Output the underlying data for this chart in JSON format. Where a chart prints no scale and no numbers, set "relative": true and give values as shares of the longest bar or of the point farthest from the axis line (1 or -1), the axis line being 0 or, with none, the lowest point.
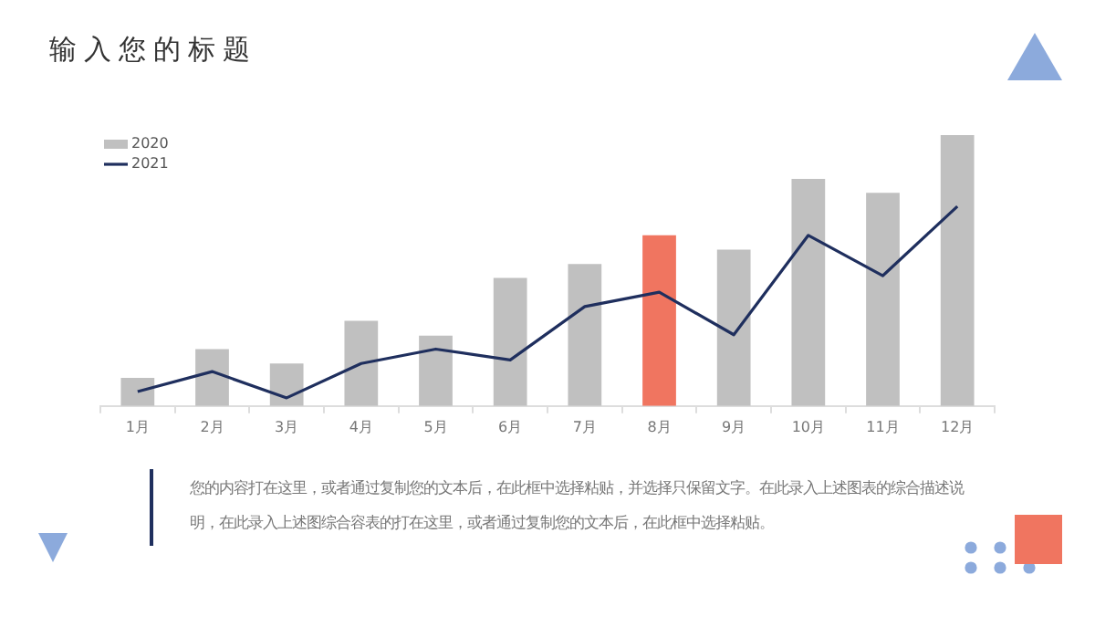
{
  "chart_data": {
    "type": "bar",
    "title": "输入您的标题",
    "categories": [
      "1月",
      "2月",
      "3月",
      "4月",
      "5月",
      "6月",
      "7月",
      "8月",
      "9月",
      "10月",
      "11月",
      "12月"
    ],
    "series": [
      {
        "name": "2020",
        "colors": [
          "#c0c0c0",
          "#c0c0c0",
          "#c0c0c0",
          "#c0c0c0",
          "#c0c0c0",
          "#c0c0c0",
          "#c0c0c0",
          "#f07560",
          "#c0c0c0",
          "#c0c0c0",
          "#c0c0c0",
          "#c0c0c0"
        ],
        "values": [
          0.104,
          0.21,
          0.157,
          0.314,
          0.26,
          0.473,
          0.524,
          0.63,
          0.577,
          0.838,
          0.787,
          1
        ]
      },
      {
        "name": "2021",
        "type": "line",
        "color": "#1f2f5e",
        "values": [
          0.053,
          0.127,
          0.03,
          0.157,
          0.21,
          0.17,
          0.367,
          0.42,
          0.263,
          0.63,
          0.481,
          0.737
        ]
      }
    ],
    "relative": true,
    "legend": "top left",
    "grid": false,
    "marker": "none",
    "annotations": [
      "您的内容打在这里，或者通过复制您的文本后，在此框中选择粘贴，并选择只保留文字。在此录入上述图表的综合描述说明，在此录入上述图综合容表的打在这里，或者通过复制您的文本后，在此框中选择粘贴。"
    ]
  }
}
